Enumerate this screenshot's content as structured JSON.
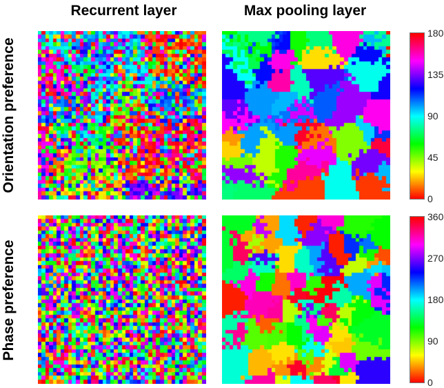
{
  "chart_data": [
    {
      "type": "heatmap",
      "title": "",
      "column_label": "Recurrent layer",
      "row_label": "Orientation preference",
      "pattern": "salt-and-pepper noise with weak smooth clustering",
      "grid": [
        44,
        44
      ],
      "value_range": [
        0,
        180
      ]
    },
    {
      "type": "heatmap",
      "title": "",
      "column_label": "Max pooling layer",
      "row_label": "Orientation preference",
      "pattern": "patchy uniform-colored domains",
      "grid": [
        44,
        44
      ],
      "value_range": [
        0,
        180
      ]
    },
    {
      "type": "heatmap",
      "title": "",
      "column_label": "Recurrent layer",
      "row_label": "Phase preference",
      "pattern": "salt-and-pepper noise",
      "grid": [
        44,
        44
      ],
      "value_range": [
        0,
        360
      ]
    },
    {
      "type": "heatmap",
      "title": "",
      "column_label": "Max pooling layer",
      "row_label": "Phase preference",
      "pattern": "patchy uniform-colored domains (smaller)",
      "grid": [
        44,
        44
      ],
      "value_range": [
        0,
        360
      ]
    }
  ],
  "colorbars": [
    {
      "ticks": [
        "0",
        "45",
        "90",
        "135",
        "180"
      ],
      "range": [
        0,
        180
      ]
    },
    {
      "ticks": [
        "0",
        "90",
        "180",
        "270",
        "360"
      ],
      "range": [
        0,
        360
      ]
    }
  ],
  "labels": {
    "col1": "Recurrent layer",
    "col2": "Max pooling layer",
    "row1": "Orientation preference",
    "row2": "Phase preference"
  },
  "colormap": "hsv (red → yellow → green → cyan → blue → magenta → red)"
}
